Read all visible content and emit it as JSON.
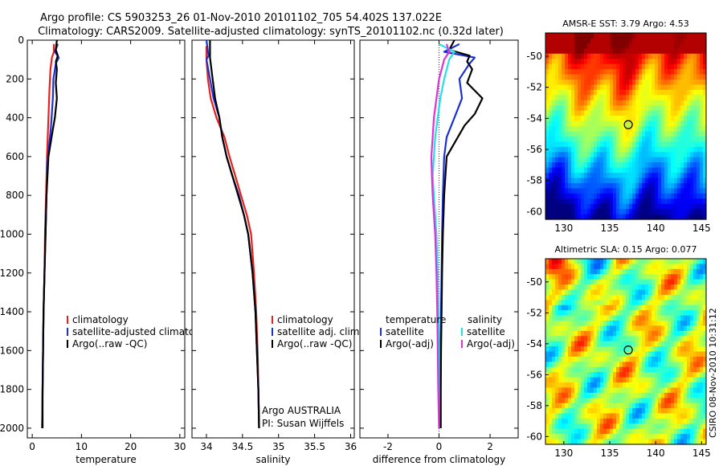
{
  "header": {
    "line1": "Argo profile: CS 5903253_26 01-Nov-2010 20101102_705 54.402S 137.022E",
    "line2": "Climatology: CARS2009. Satellite-adjusted climatology: synTS_20101102.nc (0.32d later)"
  },
  "footer": {
    "credit": "CSIRO 08-Nov-2010 10:31:12"
  },
  "colors": {
    "clim": "#e8201a",
    "sat": "#1a2fd6",
    "argo": "#000000",
    "sal_sat": "#22e0e8",
    "sal_argo": "#e030d8"
  },
  "chart_data": [
    {
      "id": "temperature",
      "type": "line",
      "xlabel": "temperature",
      "ylabel": "",
      "xlim": [
        -1,
        31
      ],
      "ylim": [
        2050,
        0
      ],
      "y_inverted": true,
      "xticks": [
        0,
        10,
        20,
        30
      ],
      "yticks": [
        0,
        200,
        400,
        600,
        800,
        1000,
        1200,
        1400,
        1600,
        1800,
        2000
      ],
      "legend": {
        "entries": [
          "climatology",
          "satellite-adjusted climatology",
          "Argo(..raw -QC)"
        ],
        "location": "lower-middle"
      },
      "series": [
        {
          "name": "climatology",
          "color": "#e8201a",
          "points": [
            [
              4.4,
              20
            ],
            [
              4.4,
              60
            ],
            [
              4.0,
              90
            ],
            [
              3.7,
              150
            ],
            [
              3.5,
              250
            ],
            [
              3.3,
              400
            ],
            [
              3.0,
              600
            ],
            [
              2.8,
              800
            ],
            [
              2.6,
              1000
            ],
            [
              2.5,
              1200
            ],
            [
              2.3,
              1400
            ],
            [
              2.2,
              1600
            ],
            [
              2.1,
              1800
            ],
            [
              2.0,
              2000
            ]
          ]
        },
        {
          "name": "satellite-adjusted climatology",
          "color": "#1a2fd6",
          "points": [
            [
              5.2,
              20
            ],
            [
              4.6,
              60
            ],
            [
              5.4,
              90
            ],
            [
              4.8,
              120
            ],
            [
              4.3,
              200
            ],
            [
              4.2,
              300
            ],
            [
              3.8,
              450
            ],
            [
              3.2,
              600
            ],
            [
              2.9,
              800
            ],
            [
              2.7,
              1000
            ],
            [
              2.5,
              1200
            ],
            [
              2.3,
              1400
            ],
            [
              2.2,
              1600
            ],
            [
              2.1,
              1800
            ],
            [
              2.0,
              2000
            ]
          ]
        },
        {
          "name": "Argo(..raw -QC)",
          "color": "#000000",
          "points": [
            [
              5.0,
              0
            ],
            [
              4.8,
              50
            ],
            [
              5.2,
              80
            ],
            [
              4.8,
              110
            ],
            [
              5.0,
              150
            ],
            [
              4.8,
              220
            ],
            [
              5.0,
              300
            ],
            [
              4.6,
              400
            ],
            [
              4.2,
              460
            ],
            [
              3.3,
              600
            ],
            [
              2.9,
              800
            ],
            [
              2.7,
              1000
            ],
            [
              2.5,
              1200
            ],
            [
              2.3,
              1400
            ],
            [
              2.2,
              1600
            ],
            [
              2.1,
              1800
            ],
            [
              2.1,
              2000
            ]
          ]
        }
      ]
    },
    {
      "id": "salinity",
      "type": "line",
      "xlabel": "salinity",
      "ylabel": "",
      "xlim": [
        33.8,
        36.05
      ],
      "ylim": [
        2050,
        0
      ],
      "y_inverted": true,
      "xticks": [
        34,
        34.5,
        35,
        35.5,
        36
      ],
      "legend": {
        "entries": [
          "climatology",
          "satellite adj. clim.",
          "Argo(..raw -QC)"
        ],
        "location": "lower-middle"
      },
      "annotation": [
        "Argo AUSTRALIA",
        "PI: Susan Wijffels"
      ],
      "series": [
        {
          "name": "climatology",
          "color": "#e8201a",
          "points": [
            [
              34.0,
              30
            ],
            [
              34.0,
              100
            ],
            [
              34.02,
              200
            ],
            [
              34.06,
              300
            ],
            [
              34.14,
              400
            ],
            [
              34.25,
              500
            ],
            [
              34.32,
              600
            ],
            [
              34.4,
              700
            ],
            [
              34.48,
              800
            ],
            [
              34.56,
              900
            ],
            [
              34.62,
              1000
            ],
            [
              34.66,
              1200
            ],
            [
              34.69,
              1400
            ],
            [
              34.71,
              1600
            ],
            [
              34.72,
              1800
            ],
            [
              34.73,
              2000
            ]
          ]
        },
        {
          "name": "satellite adj. clim.",
          "color": "#1a2fd6",
          "points": [
            [
              34.0,
              0
            ],
            [
              34.03,
              80
            ],
            [
              34.0,
              100
            ],
            [
              34.05,
              200
            ],
            [
              34.1,
              300
            ],
            [
              34.18,
              400
            ],
            [
              34.22,
              500
            ],
            [
              34.28,
              600
            ],
            [
              34.36,
              700
            ],
            [
              34.45,
              800
            ],
            [
              34.52,
              900
            ],
            [
              34.58,
              1000
            ],
            [
              34.64,
              1200
            ],
            [
              34.68,
              1400
            ],
            [
              34.7,
              1600
            ],
            [
              34.72,
              1800
            ],
            [
              34.73,
              2000
            ]
          ]
        },
        {
          "name": "Argo(..raw -QC)",
          "color": "#000000",
          "points": [
            [
              34.05,
              0
            ],
            [
              34.05,
              90
            ],
            [
              34.07,
              150
            ],
            [
              34.12,
              300
            ],
            [
              34.18,
              400
            ],
            [
              34.22,
              500
            ],
            [
              34.28,
              600
            ],
            [
              34.36,
              700
            ],
            [
              34.44,
              800
            ],
            [
              34.52,
              900
            ],
            [
              34.58,
              1000
            ],
            [
              34.64,
              1200
            ],
            [
              34.68,
              1400
            ],
            [
              34.7,
              1600
            ],
            [
              34.72,
              1800
            ],
            [
              34.73,
              2000
            ]
          ]
        }
      ]
    },
    {
      "id": "difference",
      "type": "line",
      "xlabel": "difference from climatology",
      "ylabel": "",
      "xlim": [
        -3.1,
        3.1
      ],
      "ylim": [
        2050,
        0
      ],
      "y_inverted": true,
      "xticks": [
        -2,
        0,
        2
      ],
      "reference_line": 0,
      "legend": {
        "groups": [
          {
            "title": "temperature",
            "entries": [
              "satellite",
              "Argo(-adj)"
            ]
          },
          {
            "title": "salinity",
            "entries": [
              "satellite",
              "Argo(-adj)"
            ]
          }
        ],
        "location": "lower-middle"
      },
      "series": [
        {
          "name": "temperature satellite",
          "color": "#1a2fd6",
          "points": [
            [
              0.8,
              20
            ],
            [
              0.2,
              60
            ],
            [
              1.4,
              90
            ],
            [
              1.2,
              120
            ],
            [
              0.8,
              200
            ],
            [
              0.9,
              300
            ],
            [
              0.6,
              400
            ],
            [
              0.3,
              500
            ],
            [
              0.2,
              600
            ],
            [
              0.15,
              800
            ],
            [
              0.12,
              1000
            ],
            [
              0.1,
              1200
            ],
            [
              0.08,
              1400
            ],
            [
              0.06,
              1600
            ],
            [
              0.05,
              1800
            ],
            [
              0.04,
              2000
            ]
          ]
        },
        {
          "name": "temperature Argo(-adj)",
          "color": "#000000",
          "points": [
            [
              0.6,
              0
            ],
            [
              0.4,
              50
            ],
            [
              1.2,
              80
            ],
            [
              1.1,
              110
            ],
            [
              1.3,
              150
            ],
            [
              1.1,
              220
            ],
            [
              1.7,
              300
            ],
            [
              1.4,
              380
            ],
            [
              1.0,
              440
            ],
            [
              0.3,
              600
            ],
            [
              0.2,
              800
            ],
            [
              0.15,
              1000
            ],
            [
              0.12,
              1200
            ],
            [
              0.1,
              1400
            ],
            [
              0.08,
              1600
            ],
            [
              0.07,
              1800
            ],
            [
              0.07,
              2000
            ]
          ]
        },
        {
          "name": "salinity satellite",
          "color": "#22e0e8",
          "points": [
            [
              0.0,
              20
            ],
            [
              0.6,
              60
            ],
            [
              0.4,
              100
            ],
            [
              0.2,
              200
            ],
            [
              0.05,
              300
            ],
            [
              -0.05,
              400
            ],
            [
              -0.15,
              500
            ],
            [
              -0.2,
              600
            ],
            [
              -0.25,
              700
            ],
            [
              -0.2,
              800
            ],
            [
              -0.15,
              900
            ],
            [
              -0.1,
              1000
            ],
            [
              -0.05,
              1200
            ],
            [
              -0.02,
              1400
            ],
            [
              0.0,
              1600
            ],
            [
              0.0,
              1800
            ],
            [
              0.0,
              2000
            ]
          ]
        },
        {
          "name": "salinity Argo(-adj)",
          "color": "#e030d8",
          "points": [
            [
              0.3,
              20
            ],
            [
              0.4,
              60
            ],
            [
              0.2,
              100
            ],
            [
              0.0,
              200
            ],
            [
              -0.1,
              300
            ],
            [
              -0.2,
              400
            ],
            [
              -0.25,
              500
            ],
            [
              -0.3,
              600
            ],
            [
              -0.28,
              700
            ],
            [
              -0.25,
              800
            ],
            [
              -0.2,
              900
            ],
            [
              -0.15,
              1000
            ],
            [
              -0.1,
              1200
            ],
            [
              -0.07,
              1400
            ],
            [
              -0.05,
              1600
            ],
            [
              -0.03,
              1800
            ],
            [
              0.0,
              2000
            ]
          ]
        }
      ]
    },
    {
      "id": "sst_map",
      "type": "heatmap",
      "title": "AMSR-E SST: 3.79 Argo: 4.53",
      "xlim": [
        128,
        145.5
      ],
      "ylim": [
        -60.5,
        -48.5
      ],
      "xticks": [
        130,
        135,
        140,
        145
      ],
      "yticks": [
        -50,
        -52,
        -54,
        -56,
        -58,
        -60
      ],
      "marker": [
        137.022,
        -54.402
      ],
      "palette": "jet"
    },
    {
      "id": "sla_map",
      "type": "heatmap",
      "title": "Altimetric SLA: 0.15 Argo: 0.077",
      "xlim": [
        128,
        145.5
      ],
      "ylim": [
        -60.5,
        -48.5
      ],
      "xticks": [
        130,
        135,
        140,
        145
      ],
      "yticks": [
        -50,
        -52,
        -54,
        -56,
        -58,
        -60
      ],
      "marker": [
        137.022,
        -54.402
      ],
      "palette": "jet"
    }
  ]
}
